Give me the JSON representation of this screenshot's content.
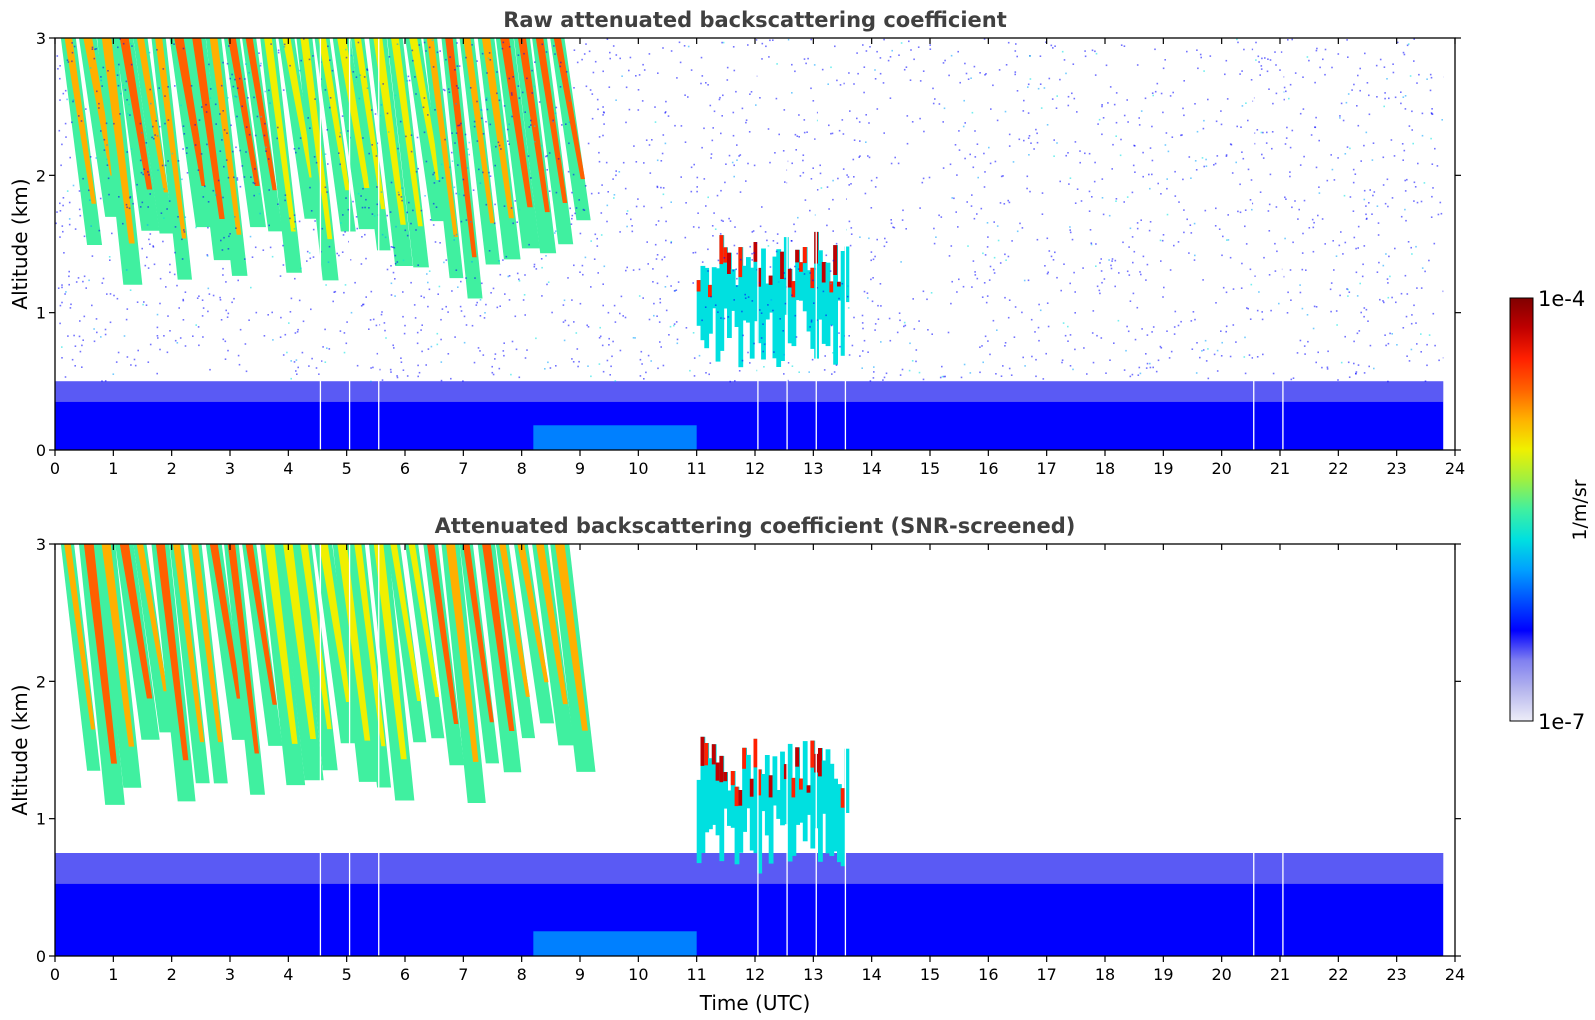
{
  "chart_data": [
    {
      "type": "heatmap",
      "title": "Raw attenuated backscattering coefficient",
      "xlabel": "",
      "ylabel": "Altitude (km)",
      "xlim": [
        0,
        24
      ],
      "ylim": [
        0,
        3
      ],
      "xticks": [
        "0",
        "1",
        "2",
        "3",
        "4",
        "5",
        "6",
        "7",
        "8",
        "9",
        "10",
        "11",
        "12",
        "13",
        "14",
        "15",
        "16",
        "17",
        "18",
        "19",
        "20",
        "21",
        "22",
        "23",
        "24"
      ],
      "yticks": [
        "0",
        "1",
        "2",
        "3"
      ],
      "data_coverage_end_utc": 23.8,
      "data_gaps_utc": [
        4.55,
        5.05,
        5.55,
        12.05,
        12.55,
        13.05,
        13.55,
        20.55,
        21.05
      ],
      "features": [
        {
          "kind": "boundary-layer aerosol",
          "t_start": 0,
          "t_end": 23.8,
          "alt_top_km": 0.5
        },
        {
          "kind": "falling ice streaks",
          "t_start": 0,
          "t_end": 9.3,
          "alt_bottom_km": 1.1,
          "alt_top_km": 3.0
        },
        {
          "kind": "mid-level cloud",
          "t_start": 11.0,
          "t_end": 13.6,
          "alt_bottom_km": 0.6,
          "alt_top_km": 1.6
        },
        {
          "kind": "background noise",
          "t_start": 0,
          "t_end": 23.8,
          "alt_bottom_km": 0.5,
          "alt_top_km": 3.0
        }
      ]
    },
    {
      "type": "heatmap",
      "title": "Attenuated backscattering coefficient (SNR-screened)",
      "xlabel": "Time (UTC)",
      "ylabel": "Altitude (km)",
      "xlim": [
        0,
        24
      ],
      "ylim": [
        0,
        3
      ],
      "xticks": [
        "0",
        "1",
        "2",
        "3",
        "4",
        "5",
        "6",
        "7",
        "8",
        "9",
        "10",
        "11",
        "12",
        "13",
        "14",
        "15",
        "16",
        "17",
        "18",
        "19",
        "20",
        "21",
        "22",
        "23",
        "24"
      ],
      "yticks": [
        "0",
        "1",
        "2",
        "3"
      ],
      "data_coverage_end_utc": 23.8,
      "data_gaps_utc": [
        4.55,
        5.05,
        5.55,
        12.05,
        12.55,
        13.05,
        13.55,
        20.55,
        21.05
      ],
      "features": [
        {
          "kind": "boundary-layer aerosol",
          "t_start": 0,
          "t_end": 23.8,
          "alt_top_km": 0.75
        },
        {
          "kind": "falling ice streaks",
          "t_start": 0,
          "t_end": 9.3,
          "alt_bottom_km": 1.1,
          "alt_top_km": 3.0
        },
        {
          "kind": "mid-level cloud",
          "t_start": 11.0,
          "t_end": 13.6,
          "alt_bottom_km": 0.6,
          "alt_top_km": 1.6
        }
      ]
    }
  ],
  "colorbar": {
    "label": "1/m/sr",
    "min_label": "1e-7",
    "max_label": "1e-4",
    "scale": "log",
    "colormap": "jet",
    "colors": [
      "#ededf8",
      "#b8b8ee",
      "#8080f0",
      "#0000ff",
      "#0050ff",
      "#00a0ff",
      "#00e0e0",
      "#40f0a0",
      "#a0f040",
      "#f0f000",
      "#ffb000",
      "#ff6000",
      "#ff2000",
      "#c00000",
      "#800000"
    ]
  }
}
